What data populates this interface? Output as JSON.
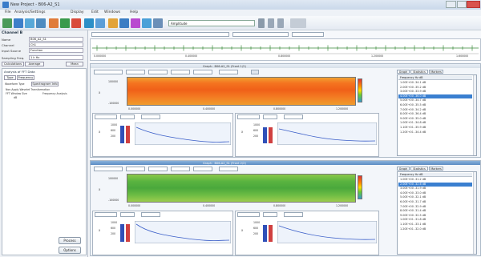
{
  "window": {
    "title": "New Project - B06-A2_S1"
  },
  "menu": [
    "File",
    "Analysis/Settings",
    "Display",
    "Edit",
    "Windows",
    "Help"
  ],
  "toolbar": {
    "dropdown_value": "Amplitude"
  },
  "left_panel": {
    "title": "Channel B",
    "fields": [
      {
        "label": "Name",
        "value": "B06_A2_S1"
      },
      {
        "label": "Channel",
        "value": "Ch1"
      },
      {
        "label": "Input Source",
        "value": "Function"
      },
      {
        "label": "Sampling Freq.",
        "value": "1 k Hz"
      }
    ],
    "calc_tabs": [
      "Calculations",
      "Average",
      "Mean"
    ],
    "sub_title": "Analysis of FFT Data",
    "tabs": [
      "Type",
      "Frequency"
    ],
    "sub_tabs": [
      "Waveform Type",
      "Spectrogram Info"
    ],
    "options": [
      "Non-Apply Wavelet Transformation",
      "FFT Window Size",
      "Frequency Analysis",
      "dB"
    ],
    "buttons": [
      "Process",
      "Options"
    ]
  },
  "section1": {
    "header": "Graph : B06-A2_S1 (Front 1/2)",
    "y_labels": [
      "100000",
      "0",
      "-100000"
    ],
    "x_labels": [
      "0.000000",
      "0.400000",
      "0.800000",
      "1.200000"
    ],
    "sub_values": [
      "1000",
      "800",
      "600",
      "400",
      "200"
    ],
    "list_tabs": [
      "Graph",
      "Statistics",
      "Markers"
    ],
    "list_header": "Frequency Hz      dB",
    "list_items": [
      "1.00E+00  -34.1 dB",
      "2.00E+00  -35.2 dB",
      "3.00E+00  -33.9 dB",
      "4.00E+00  -36.0 dB",
      "5.00E+00  -34.7 dB",
      "6.00E+00  -35.5 dB",
      "7.00E+00  -34.2 dB",
      "8.00E+00  -36.4 dB",
      "9.00E+00  -35.0 dB",
      "1.00E+01  -34.8 dB",
      "1.10E+01  -35.9 dB",
      "1.20E+01  -34.4 dB"
    ],
    "selected_index": 3
  },
  "section2": {
    "header": "Graph : B06-A2_S1 (Front 2/2)",
    "y_labels": [
      "100000",
      "0",
      "-100000"
    ],
    "x_labels": [
      "0.000000",
      "0.400000",
      "0.800000",
      "1.200000"
    ],
    "sub_values": [
      "1000",
      "800",
      "600",
      "400",
      "200"
    ],
    "list_tabs": [
      "Graph",
      "Statistics",
      "Markers"
    ],
    "list_header": "Frequency Hz      dB",
    "list_items": [
      "1.00E+00  -31.2 dB",
      "2.00E+00  -32.6 dB",
      "3.00E+00  -31.9 dB",
      "4.00E+00  -33.0 dB",
      "5.00E+00  -32.1 dB",
      "6.00E+00  -31.7 dB",
      "7.00E+00  -32.9 dB",
      "8.00E+00  -31.4 dB",
      "9.00E+00  -32.5 dB",
      "1.00E+01  -31.8 dB",
      "1.10E+01  -33.1 dB",
      "1.20E+01  -32.0 dB"
    ],
    "selected_index": 1
  },
  "strip": {
    "labels": [
      "0.000000",
      "0.400000",
      "0.800000",
      "1.200000",
      "1.600000"
    ]
  }
}
